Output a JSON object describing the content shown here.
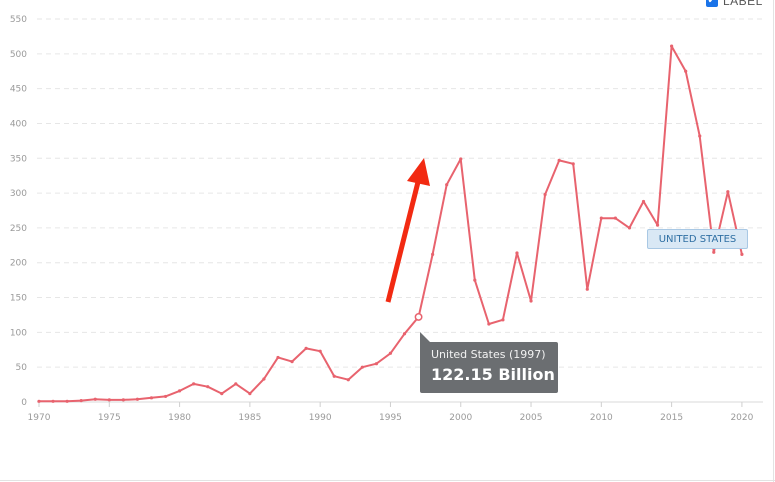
{
  "legend": {
    "toggle_label": "LABEL",
    "checked": true,
    "check_glyph": "✔"
  },
  "tooltip": {
    "line1": "United States (1997)",
    "line2": "122.15 Billion",
    "highlight_x": 1997
  },
  "series_tag": "UNITED STATES",
  "colors": {
    "line": "#e8636e",
    "arrow": "#f22a12",
    "grid": "#e6e6e6",
    "tooltip_bg": "#6b6e71"
  },
  "chart_data": {
    "type": "line",
    "xlim": [
      1970,
      2021
    ],
    "ylim": [
      0,
      550
    ],
    "grid": true,
    "x_ticks": [
      1970,
      1975,
      1980,
      1985,
      1990,
      1995,
      2000,
      2005,
      2010,
      2015,
      2020
    ],
    "y_ticks": [
      0,
      50,
      100,
      150,
      200,
      250,
      300,
      350,
      400,
      450,
      500,
      550
    ],
    "series": [
      {
        "name": "United States",
        "x": [
          1970,
          1971,
          1972,
          1973,
          1974,
          1975,
          1976,
          1977,
          1978,
          1979,
          1980,
          1981,
          1982,
          1983,
          1984,
          1985,
          1986,
          1987,
          1988,
          1989,
          1990,
          1991,
          1992,
          1993,
          1994,
          1995,
          1996,
          1997,
          1998,
          1999,
          2000,
          2001,
          2002,
          2003,
          2004,
          2005,
          2006,
          2007,
          2008,
          2009,
          2010,
          2011,
          2012,
          2013,
          2014,
          2015,
          2016,
          2017,
          2018,
          2019,
          2020
        ],
        "y": [
          1,
          1,
          1,
          2,
          4,
          3,
          3,
          4,
          6,
          8,
          16,
          26,
          22,
          12,
          26,
          12,
          33,
          64,
          58,
          77,
          73,
          37,
          32,
          50,
          55,
          70,
          98,
          122.15,
          212,
          312,
          349,
          175,
          112,
          118,
          214,
          145,
          298,
          347,
          342,
          162,
          264,
          264,
          250,
          288,
          254,
          511,
          475,
          382,
          215,
          302,
          212
        ]
      }
    ]
  }
}
